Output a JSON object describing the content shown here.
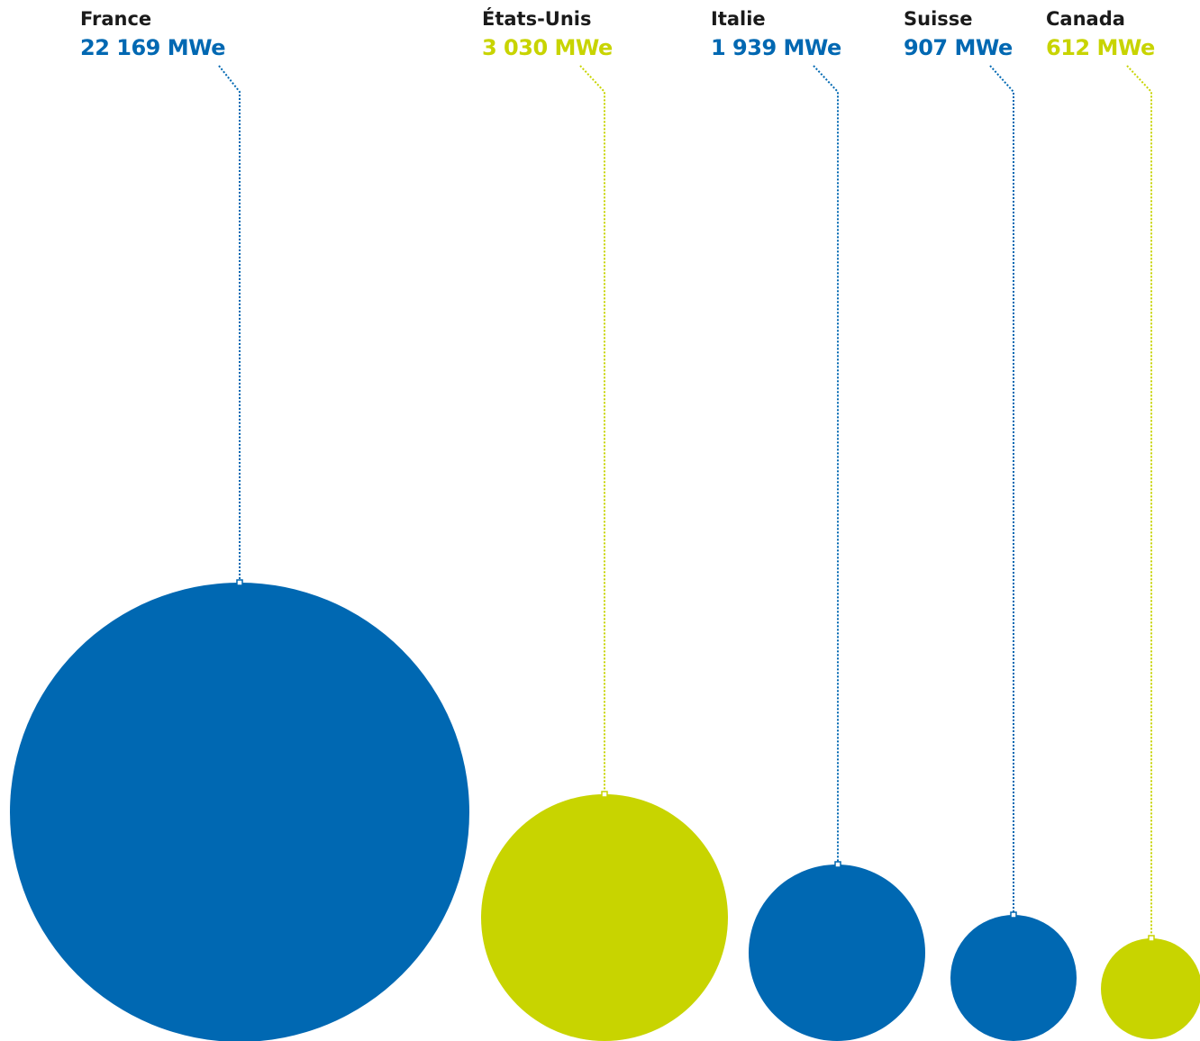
{
  "chart_data": {
    "type": "bubble",
    "title": "",
    "unit": "MWe",
    "colors": {
      "blue": "#0068b2",
      "lime": "#c8d400"
    },
    "series": [
      {
        "country": "France",
        "value": 22169,
        "value_label": "22 169 MWe",
        "color": "#0068b2"
      },
      {
        "country": "États-Unis",
        "value": 3030,
        "value_label": "3 030 MWe",
        "color": "#c8d400"
      },
      {
        "country": "Italie",
        "value": 1939,
        "value_label": "1 939 MWe",
        "color": "#0068b2"
      },
      {
        "country": "Suisse",
        "value": 907,
        "value_label": "907 MWe",
        "color": "#0068b2"
      },
      {
        "country": "Canada",
        "value": 612,
        "value_label": "612 MWe",
        "color": "#c8d400"
      }
    ]
  }
}
